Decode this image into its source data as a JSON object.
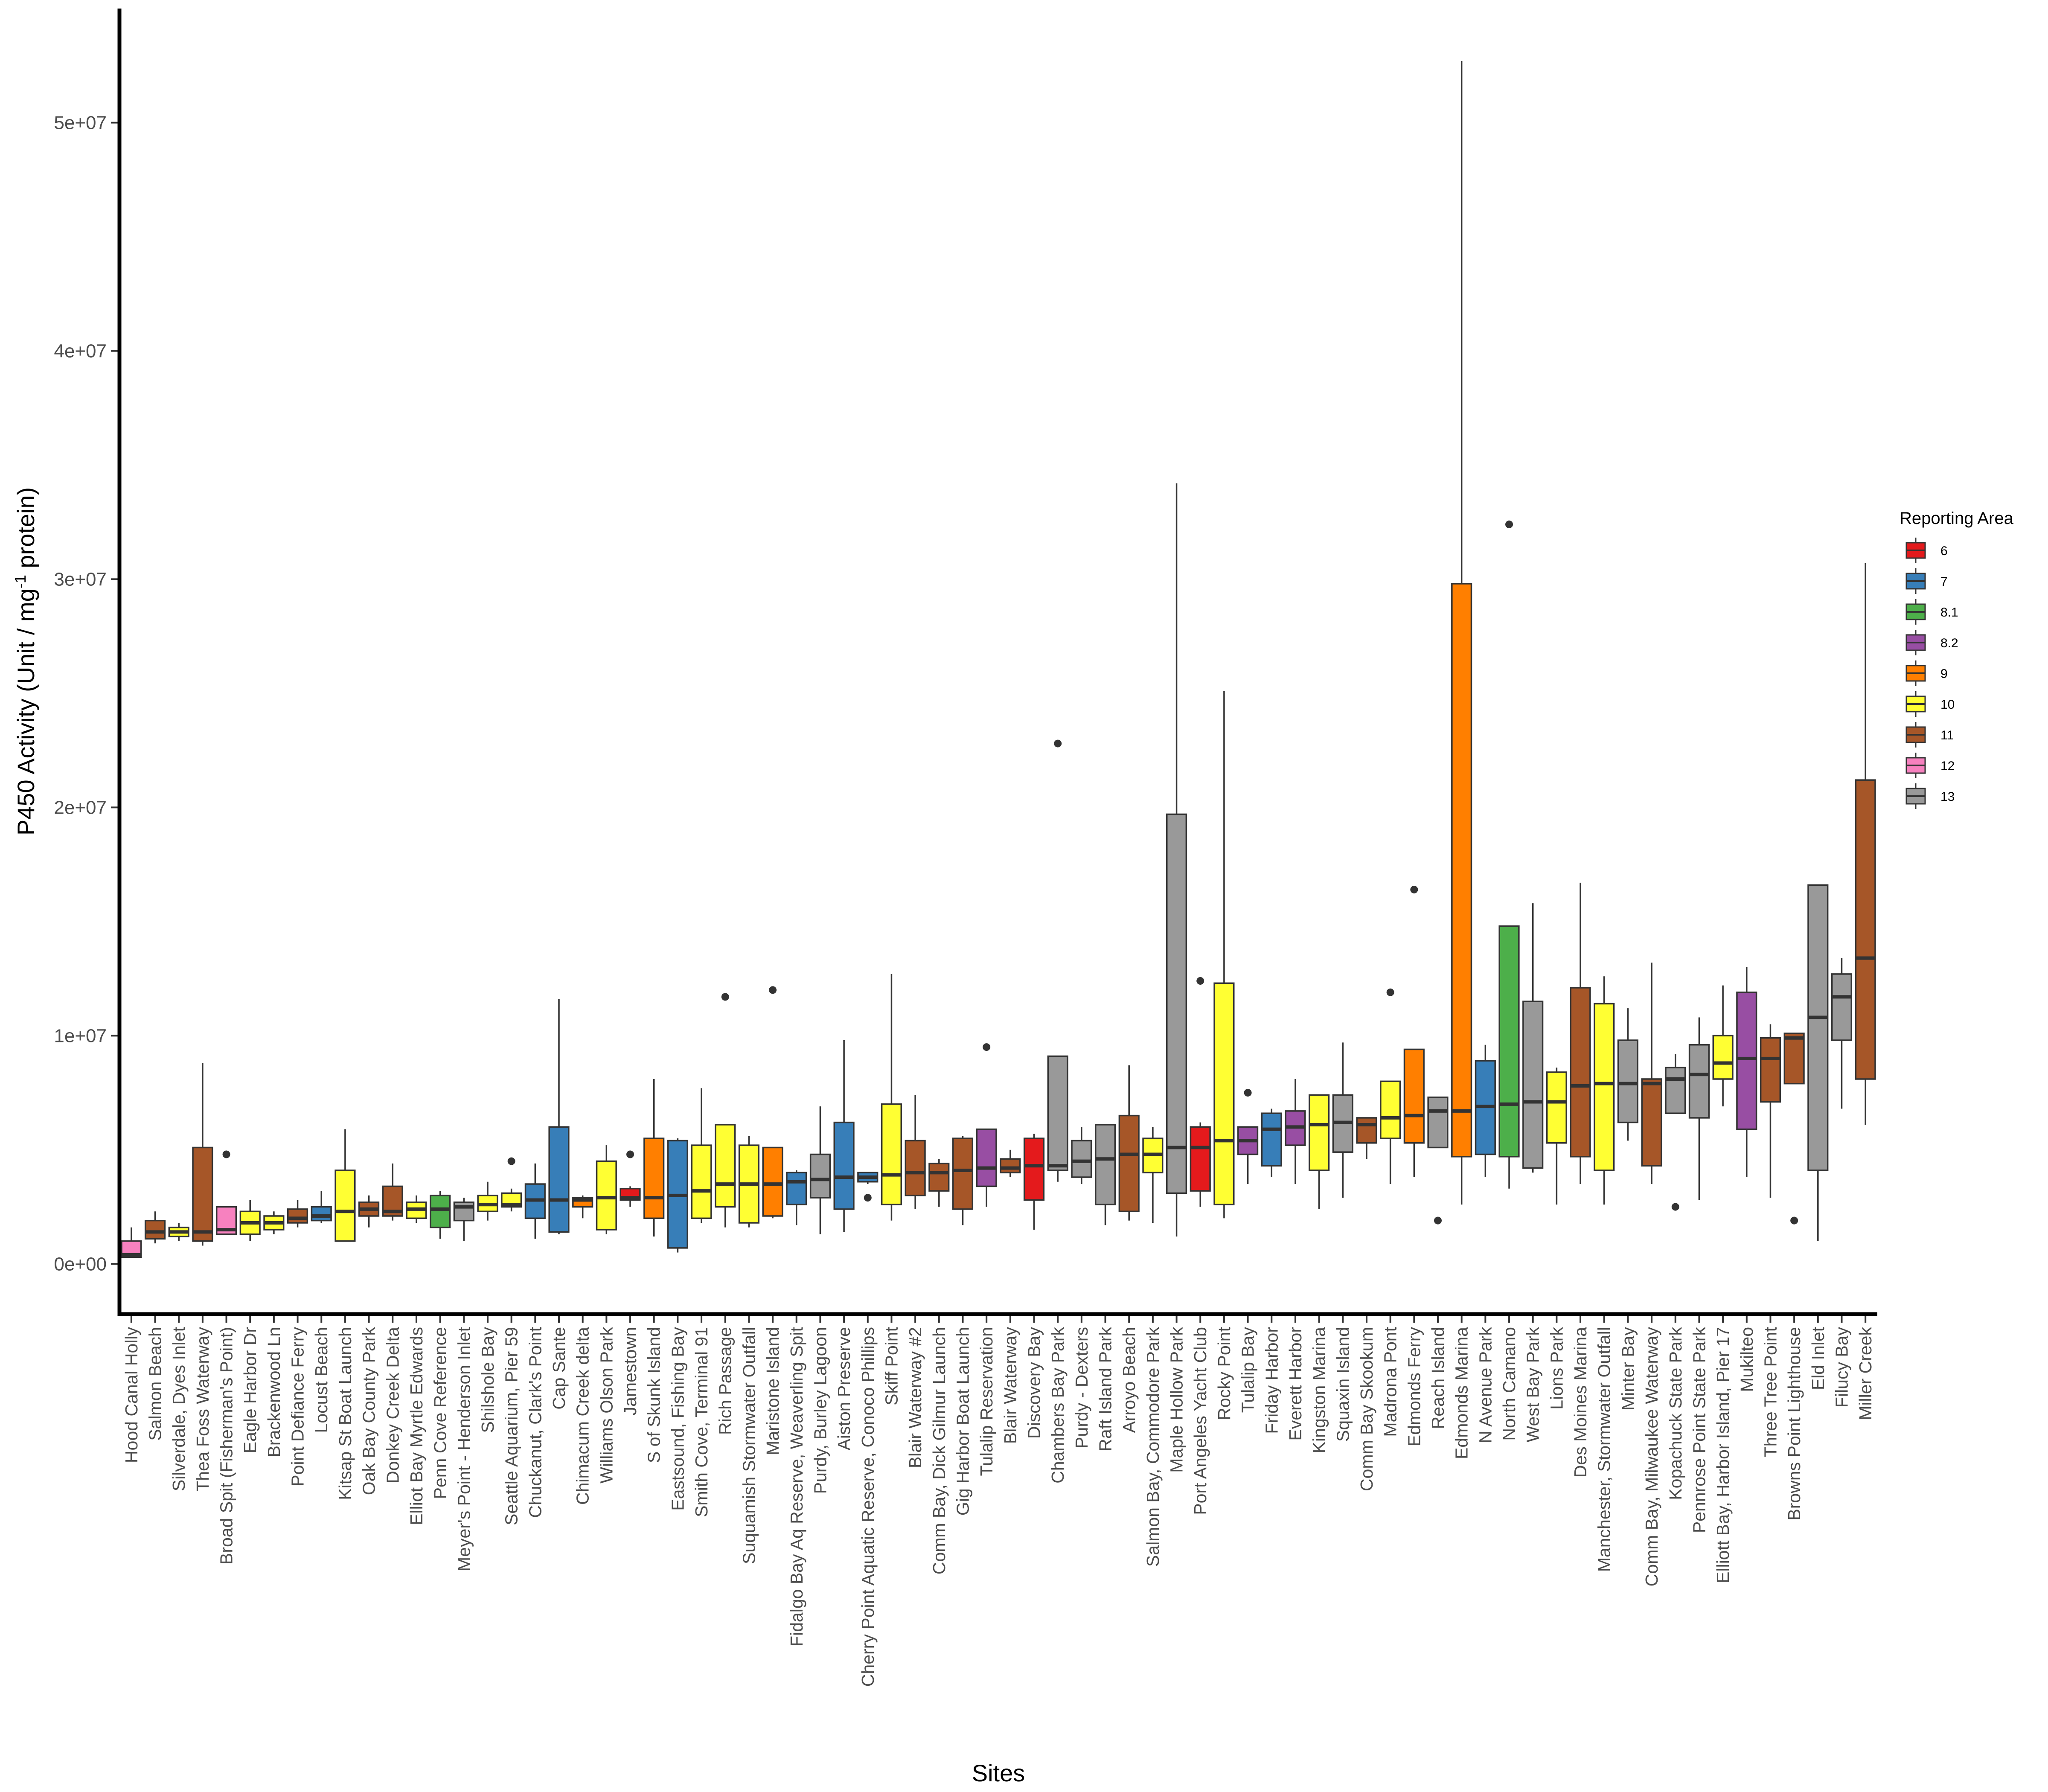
{
  "chart_data": {
    "type": "boxplot",
    "title": "",
    "xlabel": "Sites",
    "ylabel": "P450 Activity (Unit / mg",
    "ylabel_sup": "-1",
    "ylabel_tail": " protein)",
    "ylim": [
      -2200000,
      55000000
    ],
    "yticks": [
      0,
      10000000,
      20000000,
      30000000,
      40000000,
      50000000
    ],
    "ytick_labels": [
      "0e+00",
      "1e+07",
      "2e+07",
      "3e+07",
      "4e+07",
      "5e+07"
    ],
    "legend": {
      "title": "Reporting Area",
      "position": "right",
      "items": [
        {
          "label": "6",
          "color": "#E41A1C"
        },
        {
          "label": "7",
          "color": "#377EB8"
        },
        {
          "label": "8.1",
          "color": "#4DAF4A"
        },
        {
          "label": "8.2",
          "color": "#984EA3"
        },
        {
          "label": "9",
          "color": "#FF7F00"
        },
        {
          "label": "10",
          "color": "#FFFF33"
        },
        {
          "label": "11",
          "color": "#A65628"
        },
        {
          "label": "12",
          "color": "#F781BF"
        },
        {
          "label": "13",
          "color": "#999999"
        }
      ]
    },
    "series": [
      {
        "site": "Hood Canal Holly",
        "area": "12",
        "min": 300000,
        "q1": 300000,
        "median": 400000,
        "q3": 1000000,
        "max": 1600000,
        "outliers": []
      },
      {
        "site": "Salmon Beach",
        "area": "11",
        "min": 900000,
        "q1": 1100000,
        "median": 1400000,
        "q3": 1900000,
        "max": 2300000,
        "outliers": []
      },
      {
        "site": "Silverdale, Dyes Inlet",
        "area": "10",
        "min": 1000000,
        "q1": 1200000,
        "median": 1400000,
        "q3": 1600000,
        "max": 1800000,
        "outliers": []
      },
      {
        "site": "Thea Foss Waterway",
        "area": "11",
        "min": 800000,
        "q1": 1000000,
        "median": 1400000,
        "q3": 5100000,
        "max": 8800000,
        "outliers": []
      },
      {
        "site": "Broad Spit (Fisherman's Point)",
        "area": "12",
        "min": 1300000,
        "q1": 1300000,
        "median": 1500000,
        "q3": 2500000,
        "max": 2500000,
        "outliers": [
          4800000
        ]
      },
      {
        "site": "Eagle Harbor Dr",
        "area": "10",
        "min": 1000000,
        "q1": 1300000,
        "median": 1800000,
        "q3": 2300000,
        "max": 2800000,
        "outliers": []
      },
      {
        "site": "Brackenwood Ln",
        "area": "10",
        "min": 1300000,
        "q1": 1500000,
        "median": 1800000,
        "q3": 2100000,
        "max": 2300000,
        "outliers": []
      },
      {
        "site": "Point Defiance Ferry",
        "area": "11",
        "min": 1600000,
        "q1": 1800000,
        "median": 2000000,
        "q3": 2400000,
        "max": 2800000,
        "outliers": []
      },
      {
        "site": "Locust Beach",
        "area": "7",
        "min": 1800000,
        "q1": 1900000,
        "median": 2100000,
        "q3": 2500000,
        "max": 3200000,
        "outliers": []
      },
      {
        "site": "Kitsap St Boat Launch",
        "area": "10",
        "min": 1000000,
        "q1": 1000000,
        "median": 2300000,
        "q3": 4100000,
        "max": 5900000,
        "outliers": []
      },
      {
        "site": "Oak Bay County Park",
        "area": "11",
        "min": 1600000,
        "q1": 2100000,
        "median": 2400000,
        "q3": 2700000,
        "max": 3000000,
        "outliers": []
      },
      {
        "site": "Donkey Creek Delta",
        "area": "11",
        "min": 1900000,
        "q1": 2100000,
        "median": 2300000,
        "q3": 3400000,
        "max": 4400000,
        "outliers": []
      },
      {
        "site": "Elliot Bay Myrtle Edwards",
        "area": "10",
        "min": 1800000,
        "q1": 2000000,
        "median": 2400000,
        "q3": 2700000,
        "max": 3000000,
        "outliers": []
      },
      {
        "site": "Penn Cove Reference",
        "area": "8.1",
        "min": 1100000,
        "q1": 1600000,
        "median": 2400000,
        "q3": 3000000,
        "max": 3200000,
        "outliers": []
      },
      {
        "site": "Meyer's Point - Henderson Inlet",
        "area": "13",
        "min": 1000000,
        "q1": 1900000,
        "median": 2500000,
        "q3": 2700000,
        "max": 2900000,
        "outliers": []
      },
      {
        "site": "Shilshole Bay",
        "area": "10",
        "min": 1900000,
        "q1": 2300000,
        "median": 2600000,
        "q3": 3000000,
        "max": 3600000,
        "outliers": []
      },
      {
        "site": "Seattle Aquarium, Pier 59",
        "area": "10",
        "min": 2300000,
        "q1": 2500000,
        "median": 2600000,
        "q3": 3100000,
        "max": 3300000,
        "outliers": [
          4500000
        ]
      },
      {
        "site": "Chuckanut, Clark's Point",
        "area": "7",
        "min": 1100000,
        "q1": 2000000,
        "median": 2800000,
        "q3": 3500000,
        "max": 4400000,
        "outliers": []
      },
      {
        "site": "Cap Sante",
        "area": "7",
        "min": 1300000,
        "q1": 1400000,
        "median": 2800000,
        "q3": 6000000,
        "max": 11600000,
        "outliers": []
      },
      {
        "site": "Chimacum Creek delta",
        "area": "9",
        "min": 2000000,
        "q1": 2500000,
        "median": 2800000,
        "q3": 2900000,
        "max": 3000000,
        "outliers": []
      },
      {
        "site": "Williams Olson Park",
        "area": "10",
        "min": 1300000,
        "q1": 1500000,
        "median": 2900000,
        "q3": 4500000,
        "max": 5200000,
        "outliers": []
      },
      {
        "site": "Jamestown",
        "area": "6",
        "min": 2500000,
        "q1": 2800000,
        "median": 2900000,
        "q3": 3300000,
        "max": 3400000,
        "outliers": [
          4800000
        ]
      },
      {
        "site": "S of Skunk Island",
        "area": "9",
        "min": 1200000,
        "q1": 2000000,
        "median": 2900000,
        "q3": 5500000,
        "max": 8100000,
        "outliers": []
      },
      {
        "site": "Eastsound, Fishing Bay",
        "area": "7",
        "min": 500000,
        "q1": 700000,
        "median": 3000000,
        "q3": 5400000,
        "max": 5500000,
        "outliers": []
      },
      {
        "site": "Smith Cove, Terminal 91",
        "area": "10",
        "min": 1800000,
        "q1": 2000000,
        "median": 3200000,
        "q3": 5200000,
        "max": 7700000,
        "outliers": []
      },
      {
        "site": "Rich Passage",
        "area": "10",
        "min": 1600000,
        "q1": 2500000,
        "median": 3500000,
        "q3": 6100000,
        "max": 6100000,
        "outliers": [
          11700000
        ]
      },
      {
        "site": "Suquamish Stormwater Outfall",
        "area": "10",
        "min": 1600000,
        "q1": 1800000,
        "median": 3500000,
        "q3": 5200000,
        "max": 5600000,
        "outliers": []
      },
      {
        "site": "Maristone Island",
        "area": "9",
        "min": 2000000,
        "q1": 2100000,
        "median": 3500000,
        "q3": 5100000,
        "max": 5100000,
        "outliers": [
          12000000
        ]
      },
      {
        "site": "Fidalgo Bay Aq Reserve, Weaverling Spit",
        "area": "7",
        "min": 1700000,
        "q1": 2600000,
        "median": 3600000,
        "q3": 4000000,
        "max": 4100000,
        "outliers": []
      },
      {
        "site": "Purdy, Burley Lagoon",
        "area": "13",
        "min": 1300000,
        "q1": 2900000,
        "median": 3700000,
        "q3": 4800000,
        "max": 6900000,
        "outliers": []
      },
      {
        "site": "Aiston Preserve",
        "area": "7",
        "min": 1400000,
        "q1": 2400000,
        "median": 3800000,
        "q3": 6200000,
        "max": 9800000,
        "outliers": []
      },
      {
        "site": "Cherry Point Aquatic Reserve, Conoco Phillips",
        "area": "7",
        "min": 3500000,
        "q1": 3600000,
        "median": 3800000,
        "q3": 4000000,
        "max": 4000000,
        "outliers": [
          2900000
        ]
      },
      {
        "site": "Skiff Point",
        "area": "10",
        "min": 1900000,
        "q1": 2600000,
        "median": 3900000,
        "q3": 7000000,
        "max": 12700000,
        "outliers": []
      },
      {
        "site": "Blair Waterway #2",
        "area": "11",
        "min": 2400000,
        "q1": 3000000,
        "median": 4000000,
        "q3": 5400000,
        "max": 7400000,
        "outliers": []
      },
      {
        "site": "Comm Bay, Dick Gilmur Launch",
        "area": "11",
        "min": 2500000,
        "q1": 3200000,
        "median": 4000000,
        "q3": 4400000,
        "max": 4600000,
        "outliers": []
      },
      {
        "site": "Gig Harbor Boat Launch",
        "area": "11",
        "min": 1700000,
        "q1": 2400000,
        "median": 4100000,
        "q3": 5500000,
        "max": 5600000,
        "outliers": []
      },
      {
        "site": "Tulalip Reservation",
        "area": "8.2",
        "min": 2500000,
        "q1": 3400000,
        "median": 4200000,
        "q3": 5900000,
        "max": 5900000,
        "outliers": [
          9500000
        ]
      },
      {
        "site": "Blair Waterway",
        "area": "11",
        "min": 3800000,
        "q1": 4000000,
        "median": 4200000,
        "q3": 4600000,
        "max": 5000000,
        "outliers": []
      },
      {
        "site": "Discovery Bay",
        "area": "6",
        "min": 1500000,
        "q1": 2800000,
        "median": 4300000,
        "q3": 5500000,
        "max": 5700000,
        "outliers": []
      },
      {
        "site": "Chambers Bay Park",
        "area": "13",
        "min": 3600000,
        "q1": 4100000,
        "median": 4300000,
        "q3": 9100000,
        "max": 9100000,
        "outliers": [
          22800000
        ]
      },
      {
        "site": "Purdy - Dexters",
        "area": "13",
        "min": 3500000,
        "q1": 3800000,
        "median": 4500000,
        "q3": 5400000,
        "max": 6000000,
        "outliers": []
      },
      {
        "site": "Raft Island Park",
        "area": "13",
        "min": 1700000,
        "q1": 2600000,
        "median": 4600000,
        "q3": 6100000,
        "max": 6100000,
        "outliers": []
      },
      {
        "site": "Arroyo Beach",
        "area": "11",
        "min": 1900000,
        "q1": 2300000,
        "median": 4800000,
        "q3": 6500000,
        "max": 8700000,
        "outliers": []
      },
      {
        "site": "Salmon Bay, Commodore Park",
        "area": "10",
        "min": 1800000,
        "q1": 4000000,
        "median": 4800000,
        "q3": 5500000,
        "max": 6000000,
        "outliers": []
      },
      {
        "site": "Maple Hollow Park",
        "area": "13",
        "min": 1200000,
        "q1": 3100000,
        "median": 5100000,
        "q3": 19700000,
        "max": 34200000,
        "outliers": []
      },
      {
        "site": "Port Angeles Yacht Club",
        "area": "6",
        "min": 2500000,
        "q1": 3200000,
        "median": 5100000,
        "q3": 6000000,
        "max": 6200000,
        "outliers": [
          12400000
        ]
      },
      {
        "site": "Rocky Point",
        "area": "10",
        "min": 2000000,
        "q1": 2600000,
        "median": 5400000,
        "q3": 12300000,
        "max": 25100000,
        "outliers": []
      },
      {
        "site": "Tulalip Bay",
        "area": "8.2",
        "min": 3500000,
        "q1": 4800000,
        "median": 5400000,
        "q3": 6000000,
        "max": 6000000,
        "outliers": [
          7500000
        ]
      },
      {
        "site": "Friday Harbor",
        "area": "7",
        "min": 3800000,
        "q1": 4300000,
        "median": 5900000,
        "q3": 6600000,
        "max": 6800000,
        "outliers": []
      },
      {
        "site": "Everett Harbor",
        "area": "8.2",
        "min": 3500000,
        "q1": 5200000,
        "median": 6000000,
        "q3": 6700000,
        "max": 8100000,
        "outliers": []
      },
      {
        "site": "Kingston Marina",
        "area": "10",
        "min": 2400000,
        "q1": 4100000,
        "median": 6100000,
        "q3": 7400000,
        "max": 7400000,
        "outliers": []
      },
      {
        "site": "Squaxin Island",
        "area": "13",
        "min": 2900000,
        "q1": 4900000,
        "median": 6200000,
        "q3": 7400000,
        "max": 9700000,
        "outliers": []
      },
      {
        "site": "Comm Bay Skookum",
        "area": "11",
        "min": 4600000,
        "q1": 5300000,
        "median": 6100000,
        "q3": 6400000,
        "max": 6400000,
        "outliers": []
      },
      {
        "site": "Madrona Pont",
        "area": "10",
        "min": 3500000,
        "q1": 5500000,
        "median": 6400000,
        "q3": 8000000,
        "max": 8000000,
        "outliers": [
          11900000
        ]
      },
      {
        "site": "Edmonds Ferry",
        "area": "9",
        "min": 3800000,
        "q1": 5300000,
        "median": 6500000,
        "q3": 9400000,
        "max": 9400000,
        "outliers": [
          16400000
        ]
      },
      {
        "site": "Reach Island",
        "area": "13",
        "min": 5100000,
        "q1": 5100000,
        "median": 6700000,
        "q3": 7300000,
        "max": 7300000,
        "outliers": [
          1900000
        ]
      },
      {
        "site": "Edmonds Marina",
        "area": "9",
        "min": 2600000,
        "q1": 4700000,
        "median": 6700000,
        "q3": 29800000,
        "max": 52700000,
        "outliers": []
      },
      {
        "site": "N Avenue Park",
        "area": "7",
        "min": 3800000,
        "q1": 4800000,
        "median": 6900000,
        "q3": 8900000,
        "max": 9600000,
        "outliers": []
      },
      {
        "site": "North Camano",
        "area": "8.1",
        "min": 3300000,
        "q1": 4700000,
        "median": 7000000,
        "q3": 14800000,
        "max": 14800000,
        "outliers": [
          32400000
        ]
      },
      {
        "site": "West Bay Park",
        "area": "13",
        "min": 4000000,
        "q1": 4200000,
        "median": 7100000,
        "q3": 11500000,
        "max": 15800000,
        "outliers": []
      },
      {
        "site": "Lions Park",
        "area": "10",
        "min": 2600000,
        "q1": 5300000,
        "median": 7100000,
        "q3": 8400000,
        "max": 8600000,
        "outliers": []
      },
      {
        "site": "Des Moines Marina",
        "area": "11",
        "min": 3500000,
        "q1": 4700000,
        "median": 7800000,
        "q3": 12100000,
        "max": 16700000,
        "outliers": []
      },
      {
        "site": "Manchester, Stormwater Outfall",
        "area": "10",
        "min": 2600000,
        "q1": 4100000,
        "median": 7900000,
        "q3": 11400000,
        "max": 12600000,
        "outliers": []
      },
      {
        "site": "Minter Bay",
        "area": "13",
        "min": 5400000,
        "q1": 6200000,
        "median": 7900000,
        "q3": 9800000,
        "max": 11200000,
        "outliers": []
      },
      {
        "site": "Comm Bay, Milwaukee Waterway",
        "area": "11",
        "min": 3500000,
        "q1": 4300000,
        "median": 7900000,
        "q3": 8100000,
        "max": 13200000,
        "outliers": []
      },
      {
        "site": "Kopachuck State Park",
        "area": "13",
        "min": 6600000,
        "q1": 6600000,
        "median": 8100000,
        "q3": 8600000,
        "max": 9200000,
        "outliers": [
          2500000
        ]
      },
      {
        "site": "Pennrose Point State Park",
        "area": "13",
        "min": 2800000,
        "q1": 6400000,
        "median": 8300000,
        "q3": 9600000,
        "max": 10800000,
        "outliers": []
      },
      {
        "site": "Elliott Bay, Harbor Island, Pier 17",
        "area": "10",
        "min": 6900000,
        "q1": 8100000,
        "median": 8800000,
        "q3": 10000000,
        "max": 12200000,
        "outliers": []
      },
      {
        "site": "Mukilteo",
        "area": "8.2",
        "min": 3800000,
        "q1": 5900000,
        "median": 9000000,
        "q3": 11900000,
        "max": 13000000,
        "outliers": []
      },
      {
        "site": "Three Tree Point",
        "area": "11",
        "min": 2900000,
        "q1": 7100000,
        "median": 9000000,
        "q3": 9900000,
        "max": 10500000,
        "outliers": []
      },
      {
        "site": "Browns Point Lighthouse",
        "area": "11",
        "min": 7900000,
        "q1": 7900000,
        "median": 9900000,
        "q3": 10100000,
        "max": 10100000,
        "outliers": [
          1900000
        ]
      },
      {
        "site": "Eld Inlet",
        "area": "13",
        "min": 1000000,
        "q1": 4100000,
        "median": 10800000,
        "q3": 16600000,
        "max": 16600000,
        "outliers": []
      },
      {
        "site": "Filucy Bay",
        "area": "13",
        "min": 6800000,
        "q1": 9800000,
        "median": 11700000,
        "q3": 12700000,
        "max": 13400000,
        "outliers": []
      },
      {
        "site": "Miller Creek",
        "area": "11",
        "min": 6100000,
        "q1": 8100000,
        "median": 13400000,
        "q3": 21200000,
        "max": 30700000,
        "outliers": []
      }
    ]
  }
}
